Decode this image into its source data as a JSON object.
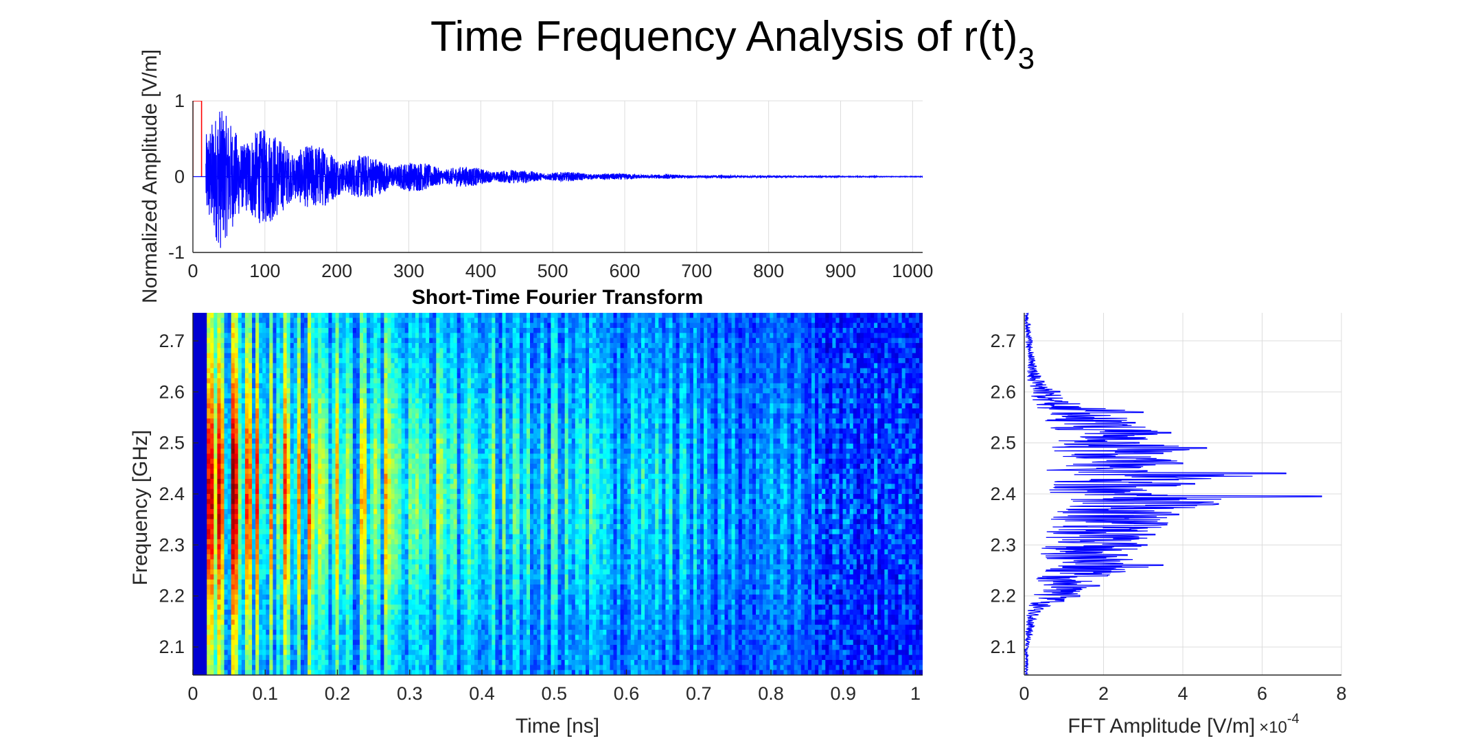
{
  "figure": {
    "title_main": "Time Frequency Analysis of r(t)",
    "title_sub": "3"
  },
  "chart_data": [
    {
      "id": "time-domain",
      "type": "line",
      "title": "",
      "xlabel": "",
      "ylabel": "Normalized Amplitude [V/m]",
      "xlim": [
        0,
        1014
      ],
      "ylim": [
        -1,
        1
      ],
      "xticks": [
        0,
        100,
        200,
        300,
        400,
        500,
        600,
        700,
        800,
        900,
        1000
      ],
      "yticks": [
        -1,
        0,
        1
      ],
      "xtick_labels": [
        "0",
        "100",
        "200",
        "300",
        "400",
        "500",
        "600",
        "700",
        "800",
        "900",
        "1000"
      ],
      "ytick_labels": [
        "-1",
        "0",
        "1"
      ],
      "grid": true,
      "series": [
        {
          "color": "#ff0000",
          "kind": "pulse",
          "x": [
            0,
            0,
            6,
            6,
            12,
            12
          ],
          "y": [
            0,
            1,
            1,
            1,
            1,
            0
          ]
        },
        {
          "color": "#0000ff",
          "kind": "decaying-ringdown",
          "start": 18,
          "end": 1014,
          "peak": 1.0,
          "decay_ns": 0.18
        }
      ]
    },
    {
      "id": "stft",
      "type": "heatmap",
      "title": "Short-Time Fourier Transform",
      "xlabel": "Time [ns]",
      "ylabel": "Frequency [GHz]",
      "xlim": [
        0,
        1.01
      ],
      "ylim": [
        2.045,
        2.755
      ],
      "xticks": [
        0,
        0.1,
        0.2,
        0.3,
        0.4,
        0.5,
        0.6,
        0.7,
        0.8,
        0.9,
        1
      ],
      "yticks": [
        2.1,
        2.2,
        2.3,
        2.4,
        2.5,
        2.6,
        2.7
      ],
      "xtick_labels": [
        "0",
        "0.1",
        "0.2",
        "0.3",
        "0.4",
        "0.5",
        "0.6",
        "0.7",
        "0.8",
        "0.9",
        "1"
      ],
      "ytick_labels": [
        "2.1",
        "2.2",
        "2.3",
        "2.4",
        "2.5",
        "2.6",
        "2.7"
      ],
      "colormap": "jet",
      "grid": false
    },
    {
      "id": "fft",
      "type": "line",
      "title": "",
      "xlabel": "FFT Amplitude [V/m]",
      "x_exponent_label": "×10",
      "x_exponent": "-4",
      "ylabel": "",
      "xlim": [
        0,
        8
      ],
      "ylim": [
        2.045,
        2.755
      ],
      "xticks": [
        0,
        2,
        4,
        6,
        8
      ],
      "yticks": [
        2.1,
        2.2,
        2.3,
        2.4,
        2.5,
        2.6,
        2.7
      ],
      "xtick_labels": [
        "0",
        "2",
        "4",
        "6",
        "8"
      ],
      "ytick_labels": [
        "2.1",
        "2.2",
        "2.3",
        "2.4",
        "2.5",
        "2.6",
        "2.7"
      ],
      "grid": true,
      "series": [
        {
          "color": "#0000ff",
          "f": [
            2.045,
            2.1,
            2.17,
            2.19,
            2.2,
            2.22,
            2.24,
            2.26,
            2.28,
            2.3,
            2.32,
            2.34,
            2.36,
            2.38,
            2.395,
            2.4,
            2.42,
            2.44,
            2.445,
            2.46,
            2.48,
            2.49,
            2.5,
            2.52,
            2.54,
            2.56,
            2.58,
            2.6,
            2.62,
            2.65,
            2.7,
            2.755
          ],
          "amp": [
            0.1,
            0.1,
            0.4,
            1.0,
            1.4,
            1.9,
            2.1,
            3.5,
            2.6,
            3.1,
            3.3,
            3.6,
            3.9,
            4.9,
            7.5,
            3.2,
            4.3,
            6.6,
            3.1,
            4.0,
            3.5,
            4.6,
            2.9,
            3.7,
            2.8,
            3.0,
            1.1,
            0.9,
            0.5,
            0.3,
            0.2,
            0.1
          ]
        }
      ]
    }
  ]
}
